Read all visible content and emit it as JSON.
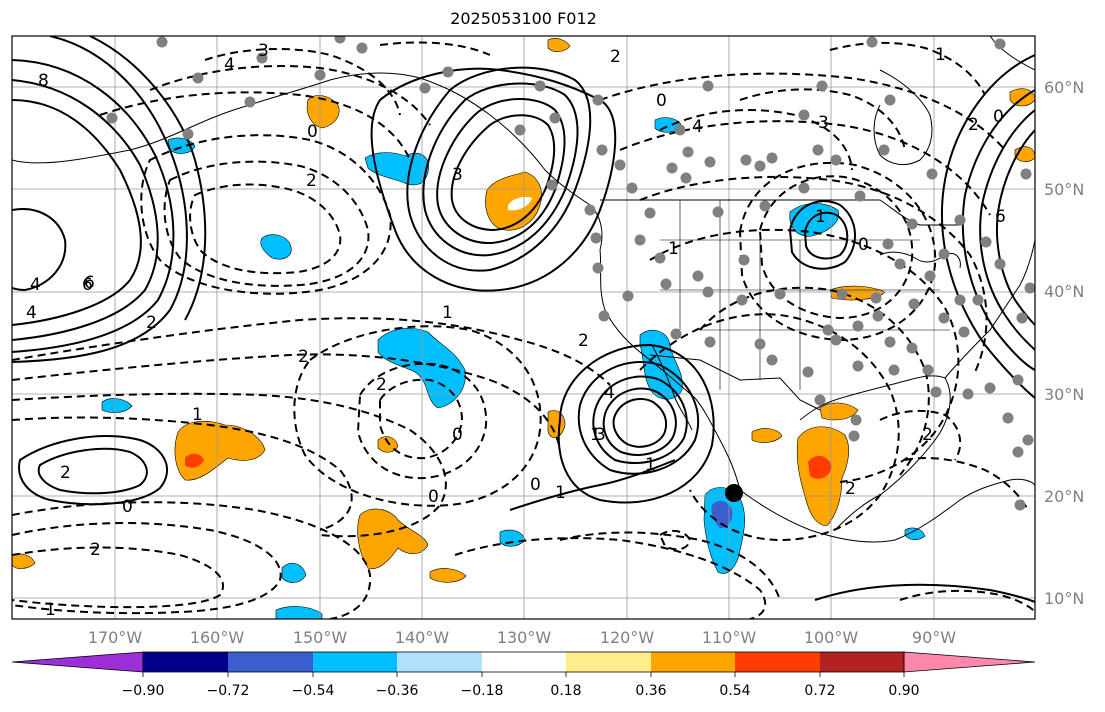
{
  "title": "2025053100 F012",
  "lat_labels": [
    "60°N",
    "50°N",
    "40°N",
    "30°N",
    "20°N",
    "10°N"
  ],
  "lon_labels": [
    "170°W",
    "160°W",
    "150°W",
    "140°W",
    "130°W",
    "120°W",
    "110°W",
    "100°W",
    "90°W"
  ],
  "colorbar": {
    "ticks": [
      "−0.90",
      "−0.72",
      "−0.54",
      "−0.36",
      "−0.18",
      "0.18",
      "0.36",
      "0.54",
      "0.72",
      "0.90"
    ],
    "colors": [
      "#9b30d9",
      "#00008b",
      "#3a5fcd",
      "#00bfff",
      "#b0e2ff",
      "#ffffff",
      "#ffec8b",
      "#ffa500",
      "#ff3d00",
      "#b22222",
      "#ff88aa"
    ]
  },
  "contour_labels": [
    "8",
    "6",
    "4",
    "2",
    "1",
    "0",
    "2",
    "4",
    "3",
    "1",
    "0",
    "2",
    "4",
    "1",
    "2",
    "0",
    "1",
    "0",
    "2",
    "1",
    "4",
    "3",
    "0",
    "1",
    "2",
    "3",
    "0",
    "2",
    "4",
    "6",
    "2",
    "0",
    "1",
    "0",
    "1",
    "3",
    "2",
    "1",
    "2",
    "6",
    "2"
  ],
  "map_domain": {
    "lon_range": [
      -180,
      -80
    ],
    "lat_range": [
      7,
      64
    ],
    "gridlines": true
  }
}
